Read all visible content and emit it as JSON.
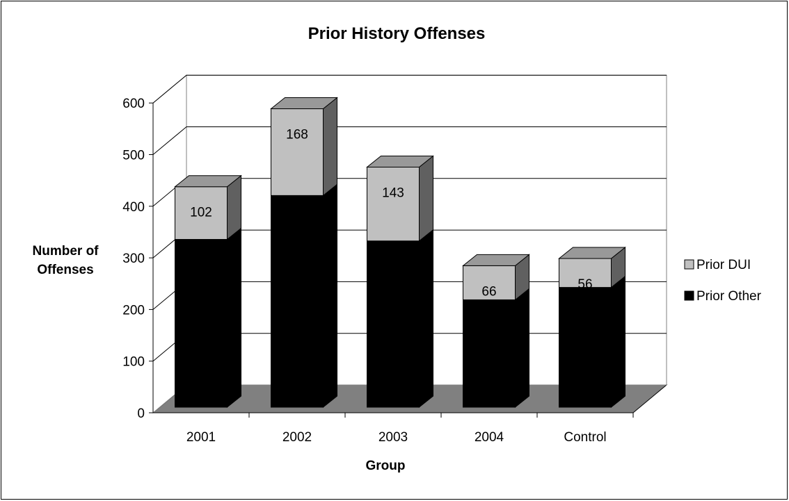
{
  "chart_data": {
    "type": "bar",
    "stacked": true,
    "three_d": true,
    "title": "Prior History Offenses",
    "xlabel": "Group",
    "ylabel_lines": [
      "Number of",
      "Offenses"
    ],
    "categories": [
      "2001",
      "2002",
      "2003",
      "2004",
      "Control"
    ],
    "series": [
      {
        "name": "Prior Other",
        "values": [
          325,
          410,
          322,
          208,
          232
        ],
        "color": "#000000"
      },
      {
        "name": "Prior DUI",
        "values": [
          102,
          168,
          143,
          66,
          56
        ],
        "color": "#c0c0c0",
        "data_labels": [
          "102",
          "168",
          "143",
          "66",
          "56"
        ]
      }
    ],
    "ylim": [
      0,
      600
    ],
    "yticks": [
      "0",
      "100",
      "200",
      "300",
      "400",
      "500",
      "600"
    ],
    "grid": true,
    "legend_position": "right",
    "colors": {
      "floor": "#808080",
      "back_wall": "#ffffff",
      "gridline": "#000000",
      "side_dark": "#000000",
      "side_light": "#606060",
      "top_dark": "#333333",
      "top_light": "#999999"
    }
  }
}
